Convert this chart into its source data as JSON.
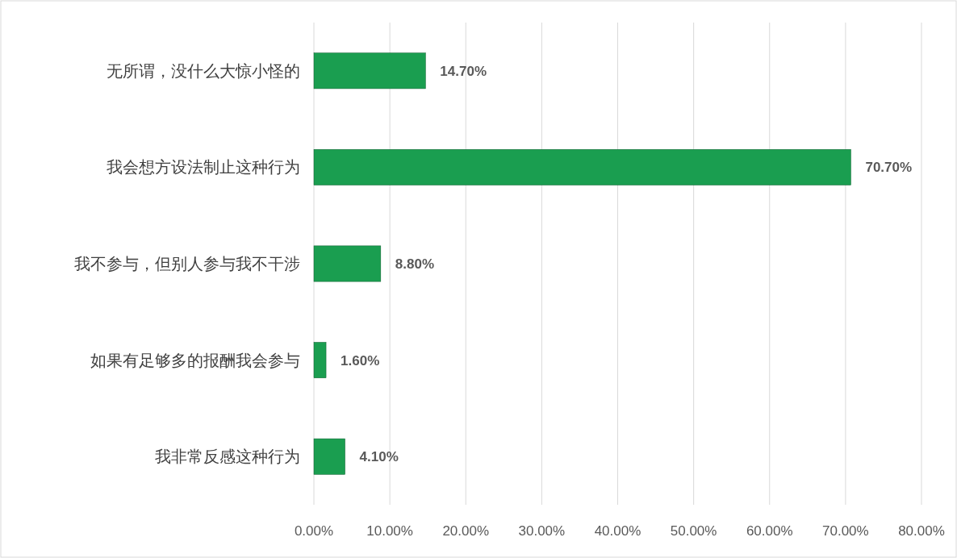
{
  "chart_data": {
    "type": "bar",
    "orientation": "horizontal",
    "categories": [
      "无所谓，没什么大惊小怪的",
      "我会想方设法制止这种行为",
      "我不参与，但别人参与我不干涉",
      "如果有足够多的报酬我会参与",
      "我非常反感这种行为"
    ],
    "values": [
      14.7,
      70.7,
      8.8,
      1.6,
      4.1
    ],
    "value_labels": [
      "14.70%",
      "70.70%",
      "8.80%",
      "1.60%",
      "4.10%"
    ],
    "color": "#1a9e50",
    "xlim": [
      0,
      80
    ],
    "xticks": [
      {
        "value": 0,
        "label": "0.00%"
      },
      {
        "value": 10,
        "label": "10.00%"
      },
      {
        "value": 20,
        "label": "20.00%"
      },
      {
        "value": 30,
        "label": "30.00%"
      },
      {
        "value": 40,
        "label": "40.00%"
      },
      {
        "value": 50,
        "label": "50.00%"
      },
      {
        "value": 60,
        "label": "60.00%"
      },
      {
        "value": 70,
        "label": "70.00%"
      },
      {
        "value": 80,
        "label": "80.00%"
      }
    ],
    "grid": "x"
  }
}
